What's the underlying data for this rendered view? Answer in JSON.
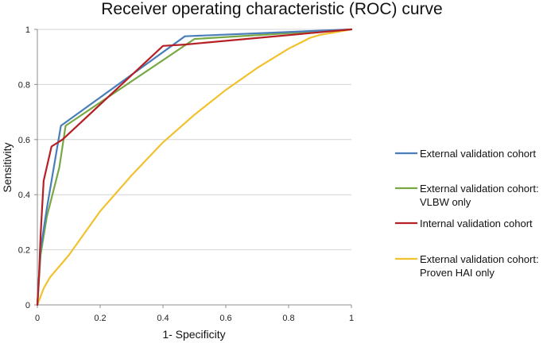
{
  "chart_data": {
    "type": "line",
    "title": "Receiver operating characteristic (ROC) curve",
    "xlabel": "1- Specificity",
    "ylabel": "Sensitivity",
    "xlim": [
      0,
      1
    ],
    "ylim": [
      0,
      1
    ],
    "xticks": [
      0,
      0.2,
      0.4,
      0.6,
      0.8,
      1
    ],
    "yticks": [
      0,
      0.2,
      0.4,
      0.6,
      0.8,
      1
    ],
    "xtick_labels": [
      "0",
      "0.2",
      "0.4",
      "0.6",
      "0.8",
      "1"
    ],
    "ytick_labels": [
      "0",
      "0.2",
      "0.4",
      "0.6",
      "0.8",
      "1"
    ],
    "grid": "horizontal",
    "legend_position": "right",
    "series": [
      {
        "name": "External validation cohort",
        "legend_lines": [
          "External validation cohort"
        ],
        "color": "#4a7ebb",
        "x": [
          0,
          0.01,
          0.03,
          0.06,
          0.075,
          0.47,
          1.0
        ],
        "y": [
          0,
          0.2,
          0.35,
          0.55,
          0.65,
          0.975,
          1.0
        ]
      },
      {
        "name": "External validation cohort: VLBW only",
        "legend_lines": [
          "External validation cohort:",
          "VLBW only"
        ],
        "color": "#77a844",
        "x": [
          0,
          0.01,
          0.03,
          0.07,
          0.09,
          0.5,
          1.0
        ],
        "y": [
          0,
          0.18,
          0.32,
          0.5,
          0.65,
          0.965,
          1.0
        ]
      },
      {
        "name": "Internal validation cohort",
        "legend_lines": [
          "Internal validation cohort"
        ],
        "color": "#b62025",
        "x": [
          0,
          0.005,
          0.01,
          0.02,
          0.045,
          0.08,
          0.4,
          0.47,
          1.0
        ],
        "y": [
          0,
          0.1,
          0.25,
          0.45,
          0.575,
          0.6,
          0.94,
          0.945,
          1.0
        ]
      },
      {
        "name": "External validation cohort: Proven HAI only",
        "legend_lines": [
          "External validation cohort:",
          "Proven HAI only"
        ],
        "color": "#f2c12e",
        "x": [
          0,
          0.01,
          0.02,
          0.04,
          0.07,
          0.1,
          0.2,
          0.3,
          0.4,
          0.5,
          0.6,
          0.7,
          0.8,
          0.87,
          0.9,
          0.95,
          1.0
        ],
        "y": [
          0,
          0.03,
          0.06,
          0.1,
          0.14,
          0.18,
          0.34,
          0.47,
          0.59,
          0.69,
          0.78,
          0.86,
          0.93,
          0.97,
          0.98,
          0.99,
          1.0
        ]
      }
    ]
  }
}
